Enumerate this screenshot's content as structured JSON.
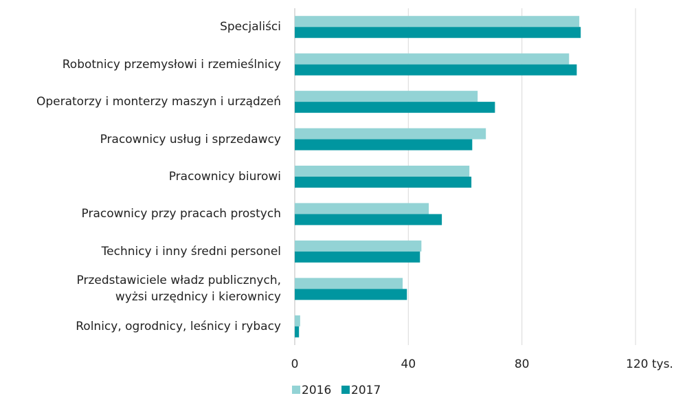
{
  "chart_data": {
    "type": "hbar",
    "categories": [
      "Specjaliści",
      "Robotnicy przemysłowi i rzemieślnicy",
      "Operatorzy i monterzy maszyn i urządzeń",
      "Pracownicy usług i sprzedawcy",
      "Pracownicy biurowi",
      "Pracownicy przy pracach prostych",
      "Technicy i inny średni personel",
      "Przedstawiciele władz publicznych,\nwyżsi urzędnicy i kierownicy",
      "Rolnicy, ogrodnicy, leśnicy i rybacy"
    ],
    "series": [
      {
        "name": "2016",
        "color": "#93d3d5",
        "values": [
          100.2,
          96.6,
          64.4,
          67.3,
          61.5,
          47.2,
          44.6,
          38,
          1.9
        ]
      },
      {
        "name": "2017",
        "color": "#0096a0",
        "values": [
          100.7,
          99.3,
          70.5,
          62.5,
          62.2,
          51.8,
          44.1,
          39.5,
          1.5
        ]
      }
    ],
    "xlim": [
      0,
      133.5
    ],
    "xticks": [
      0,
      40,
      80,
      {
        "value": 120,
        "label": "120 tys."
      }
    ],
    "grid": true,
    "legend": "bottom"
  }
}
